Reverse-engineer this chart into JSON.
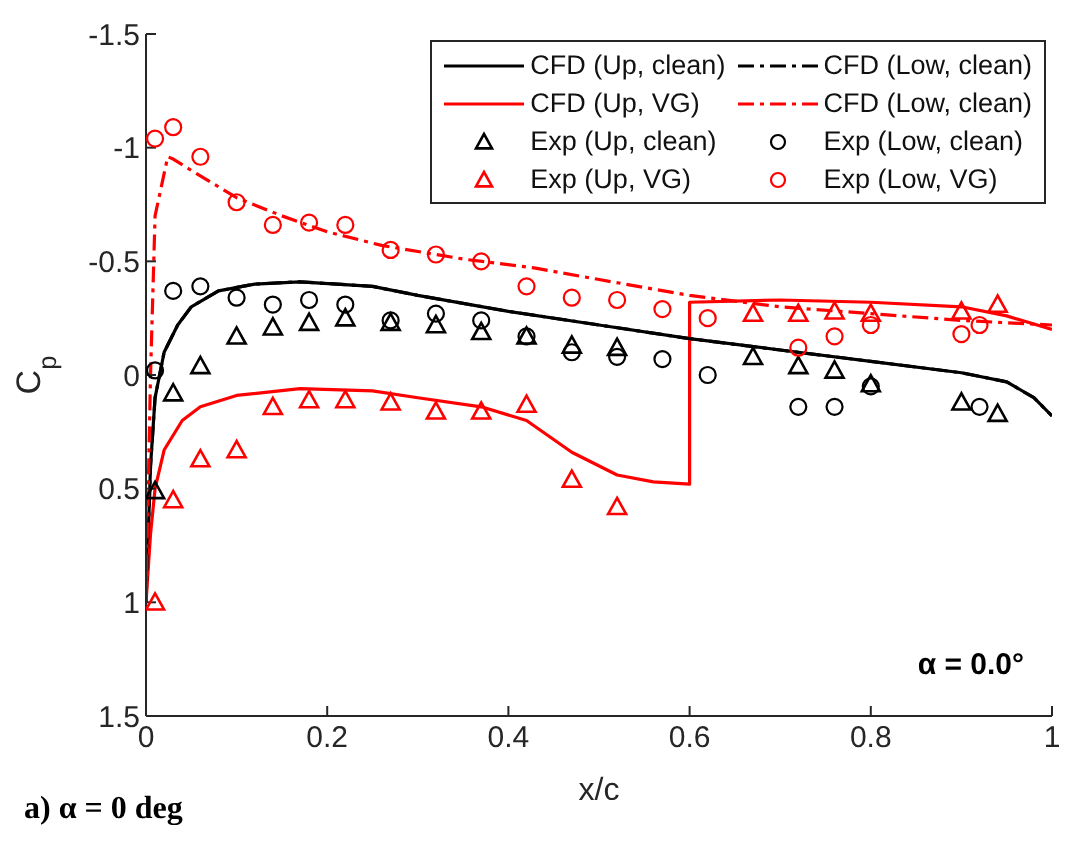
{
  "chart_data": {
    "type": "line",
    "xlabel": "x/c",
    "ylabel": "C$_{p}$",
    "xlim": [
      0,
      1
    ],
    "xticks": [
      0,
      0.2,
      0.4,
      0.6,
      0.8,
      1
    ],
    "ylim": [
      1.5,
      -1.5
    ],
    "yticks": [
      -1.5,
      -1,
      -0.5,
      0,
      0.5,
      1,
      1.5
    ],
    "legend": "top right",
    "annotations": [
      "α = 0.0°",
      "a) α = 0 deg"
    ],
    "series": [
      {
        "name": "CFD (Up, clean)",
        "line_style": "solid",
        "color": "#000000",
        "x": [
          0,
          0.005,
          0.01,
          0.02,
          0.035,
          0.05,
          0.08,
          0.12,
          0.17,
          0.25,
          0.3,
          0.4,
          0.5,
          0.6,
          0.7,
          0.8,
          0.9,
          0.95,
          0.98,
          1
        ],
        "values": [
          1,
          0.4,
          0.1,
          -0.1,
          -0.22,
          -0.3,
          -0.37,
          -0.4,
          -0.41,
          -0.39,
          -0.35,
          -0.28,
          -0.22,
          -0.16,
          -0.11,
          -0.06,
          -0.01,
          0.03,
          0.1,
          0.18
        ]
      },
      {
        "name": "CFD (Up, VG)",
        "line_style": "solid",
        "color": "#ff0000",
        "x": [
          0,
          0.005,
          0.01,
          0.02,
          0.04,
          0.06,
          0.1,
          0.17,
          0.25,
          0.3,
          0.37,
          0.42,
          0.47,
          0.52,
          0.56,
          0.6,
          0.6,
          0.7,
          0.8,
          0.9,
          0.95,
          1
        ],
        "values": [
          1,
          0.7,
          0.5,
          0.33,
          0.2,
          0.14,
          0.09,
          0.06,
          0.07,
          0.1,
          0.14,
          0.2,
          0.34,
          0.44,
          0.47,
          0.48,
          -0.32,
          -0.33,
          -0.32,
          -0.3,
          -0.26,
          -0.2
        ]
      },
      {
        "name": "Exp (Up, clean)",
        "type": "scatter",
        "marker": "triangle",
        "color": "#000000",
        "x": [
          0.01,
          0.03,
          0.06,
          0.1,
          0.14,
          0.18,
          0.22,
          0.27,
          0.32,
          0.37,
          0.42,
          0.47,
          0.52,
          0.67,
          0.72,
          0.76,
          0.8,
          0.9,
          0.94
        ],
        "values": [
          0.51,
          0.08,
          -0.04,
          -0.17,
          -0.21,
          -0.23,
          -0.25,
          -0.23,
          -0.22,
          -0.19,
          -0.17,
          -0.13,
          -0.12,
          -0.08,
          -0.04,
          -0.02,
          0.04,
          0.12,
          0.17
        ]
      },
      {
        "name": "Exp (Up, VG)",
        "type": "scatter",
        "marker": "triangle",
        "color": "#ff0000",
        "x": [
          0.01,
          0.03,
          0.06,
          0.1,
          0.14,
          0.18,
          0.22,
          0.27,
          0.32,
          0.37,
          0.42,
          0.47,
          0.52,
          0.67,
          0.72,
          0.76,
          0.8,
          0.9,
          0.94
        ],
        "values": [
          1,
          0.55,
          0.37,
          0.33,
          0.14,
          0.11,
          0.11,
          0.12,
          0.16,
          0.16,
          0.13,
          0.46,
          0.58,
          -0.27,
          -0.27,
          -0.28,
          -0.27,
          -0.28,
          -0.31
        ]
      },
      {
        "name": "CFD (Low, clean)",
        "line_style": "dashed",
        "color": "#000000",
        "x": [
          0,
          0.005,
          0.01,
          0.02,
          0.035,
          0.05,
          0.08,
          0.12,
          0.17,
          0.25,
          0.3,
          0.4,
          0.5,
          0.6,
          0.7,
          0.8,
          0.9,
          0.95,
          0.98,
          1
        ],
        "values": [
          1,
          0.4,
          0.1,
          -0.1,
          -0.22,
          -0.3,
          -0.37,
          -0.4,
          -0.41,
          -0.39,
          -0.35,
          -0.28,
          -0.22,
          -0.16,
          -0.11,
          -0.06,
          -0.01,
          0.03,
          0.1,
          0.18
        ]
      },
      {
        "name": "CFD (Low, clean)",
        "line_style": "dashed",
        "color": "#ff0000",
        "x": [
          0,
          0.005,
          0.01,
          0.024,
          0.03,
          0.05,
          0.1,
          0.15,
          0.2,
          0.26,
          0.35,
          0.43,
          0.5,
          0.6,
          0.7,
          0.8,
          0.9,
          1
        ],
        "values": [
          1,
          0,
          -0.7,
          -0.96,
          -0.95,
          -0.9,
          -0.78,
          -0.7,
          -0.63,
          -0.57,
          -0.51,
          -0.47,
          -0.42,
          -0.35,
          -0.3,
          -0.27,
          -0.24,
          -0.22
        ]
      },
      {
        "name": "Exp (Low, clean)",
        "type": "scatter",
        "marker": "circle",
        "color": "#000000",
        "x": [
          0.01,
          0.03,
          0.06,
          0.1,
          0.14,
          0.18,
          0.22,
          0.27,
          0.32,
          0.37,
          0.42,
          0.47,
          0.52,
          0.57,
          0.62,
          0.72,
          0.76,
          0.8,
          0.92
        ],
        "values": [
          -0.02,
          -0.37,
          -0.39,
          -0.34,
          -0.31,
          -0.33,
          -0.31,
          -0.24,
          -0.27,
          -0.24,
          -0.17,
          -0.1,
          -0.08,
          -0.07,
          0,
          0.14,
          0.14,
          0.05,
          0.14
        ]
      },
      {
        "name": "Exp (Low, VG)",
        "type": "scatter",
        "marker": "circle",
        "color": "#ff0000",
        "x": [
          0.01,
          0.03,
          0.06,
          0.1,
          0.14,
          0.18,
          0.22,
          0.27,
          0.32,
          0.37,
          0.42,
          0.47,
          0.52,
          0.57,
          0.62,
          0.72,
          0.76,
          0.8,
          0.9,
          0.92
        ],
        "values": [
          -1.04,
          -1.09,
          -0.96,
          -0.76,
          -0.66,
          -0.67,
          -0.66,
          -0.55,
          -0.53,
          -0.5,
          -0.39,
          -0.34,
          -0.33,
          -0.29,
          -0.25,
          -0.12,
          -0.17,
          -0.22,
          -0.18,
          -0.22
        ]
      }
    ]
  }
}
